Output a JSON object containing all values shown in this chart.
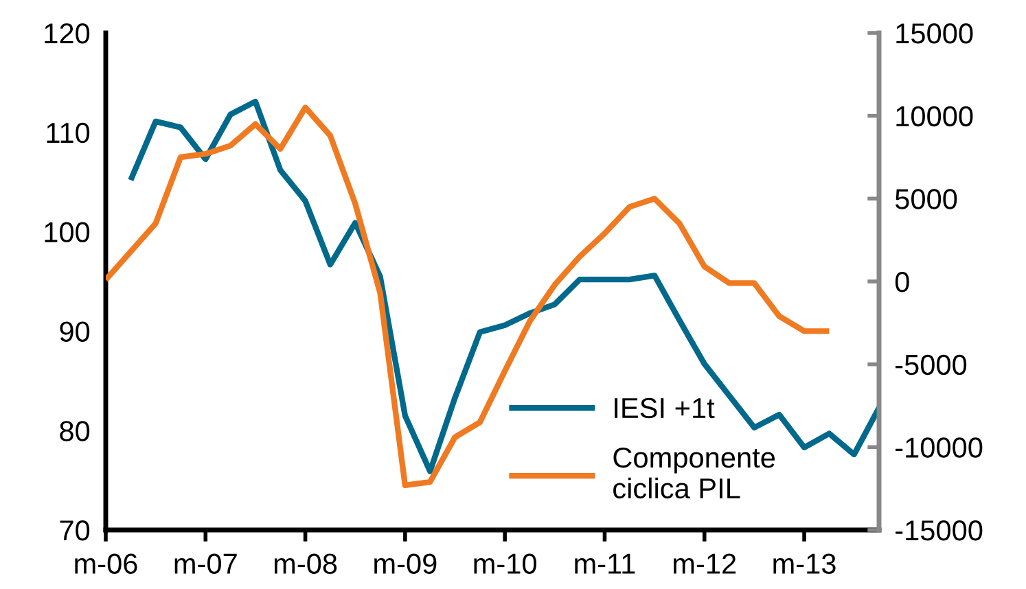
{
  "chart_data": {
    "type": "line",
    "categories": [
      "m-06",
      null,
      null,
      null,
      "m-07",
      null,
      null,
      null,
      "m-08",
      null,
      null,
      null,
      "m-09",
      null,
      null,
      null,
      "m-10",
      null,
      null,
      null,
      "m-11",
      null,
      null,
      null,
      "m-12",
      null,
      null,
      null,
      "m-13",
      null,
      null,
      null
    ],
    "ylim": [
      70,
      120
    ],
    "yticks": [
      70,
      80,
      90,
      100,
      110,
      120
    ],
    "y2lim": [
      -15000,
      15000
    ],
    "y2ticks": [
      -15000,
      -10000,
      -5000,
      0,
      5000,
      10000,
      15000
    ],
    "legend": "bottom right",
    "marker": "none",
    "line_style": "solid",
    "series": [
      {
        "name": "IESI +1t",
        "color": "#00698c",
        "values": [
          null,
          105.2,
          111.1,
          110.5,
          107.3,
          111.8,
          113.1,
          106.2,
          103.1,
          96.7,
          100.9,
          95.5,
          81.5,
          75.9,
          83.3,
          89.9,
          90.6,
          91.8,
          92.7,
          95.2,
          95.2,
          95.2,
          95.6,
          91.1,
          86.7,
          83.5,
          80.3,
          81.6,
          78.3,
          79.7,
          77.6,
          82.3
        ]
      },
      {
        "name": "Componente\nciclica PIL",
        "color": "#f07a22",
        "axis": "y2",
        "values": [
          100,
          1800,
          3500,
          7500,
          7700,
          8200,
          9500,
          8000,
          10500,
          8800,
          4700,
          -700,
          -12300,
          -12100,
          -9400,
          -8500,
          -5400,
          -2400,
          -200,
          1500,
          2900,
          4500,
          5000,
          3500,
          900,
          -100,
          -100,
          -2100,
          -3000,
          -3000,
          null,
          null
        ]
      }
    ]
  }
}
